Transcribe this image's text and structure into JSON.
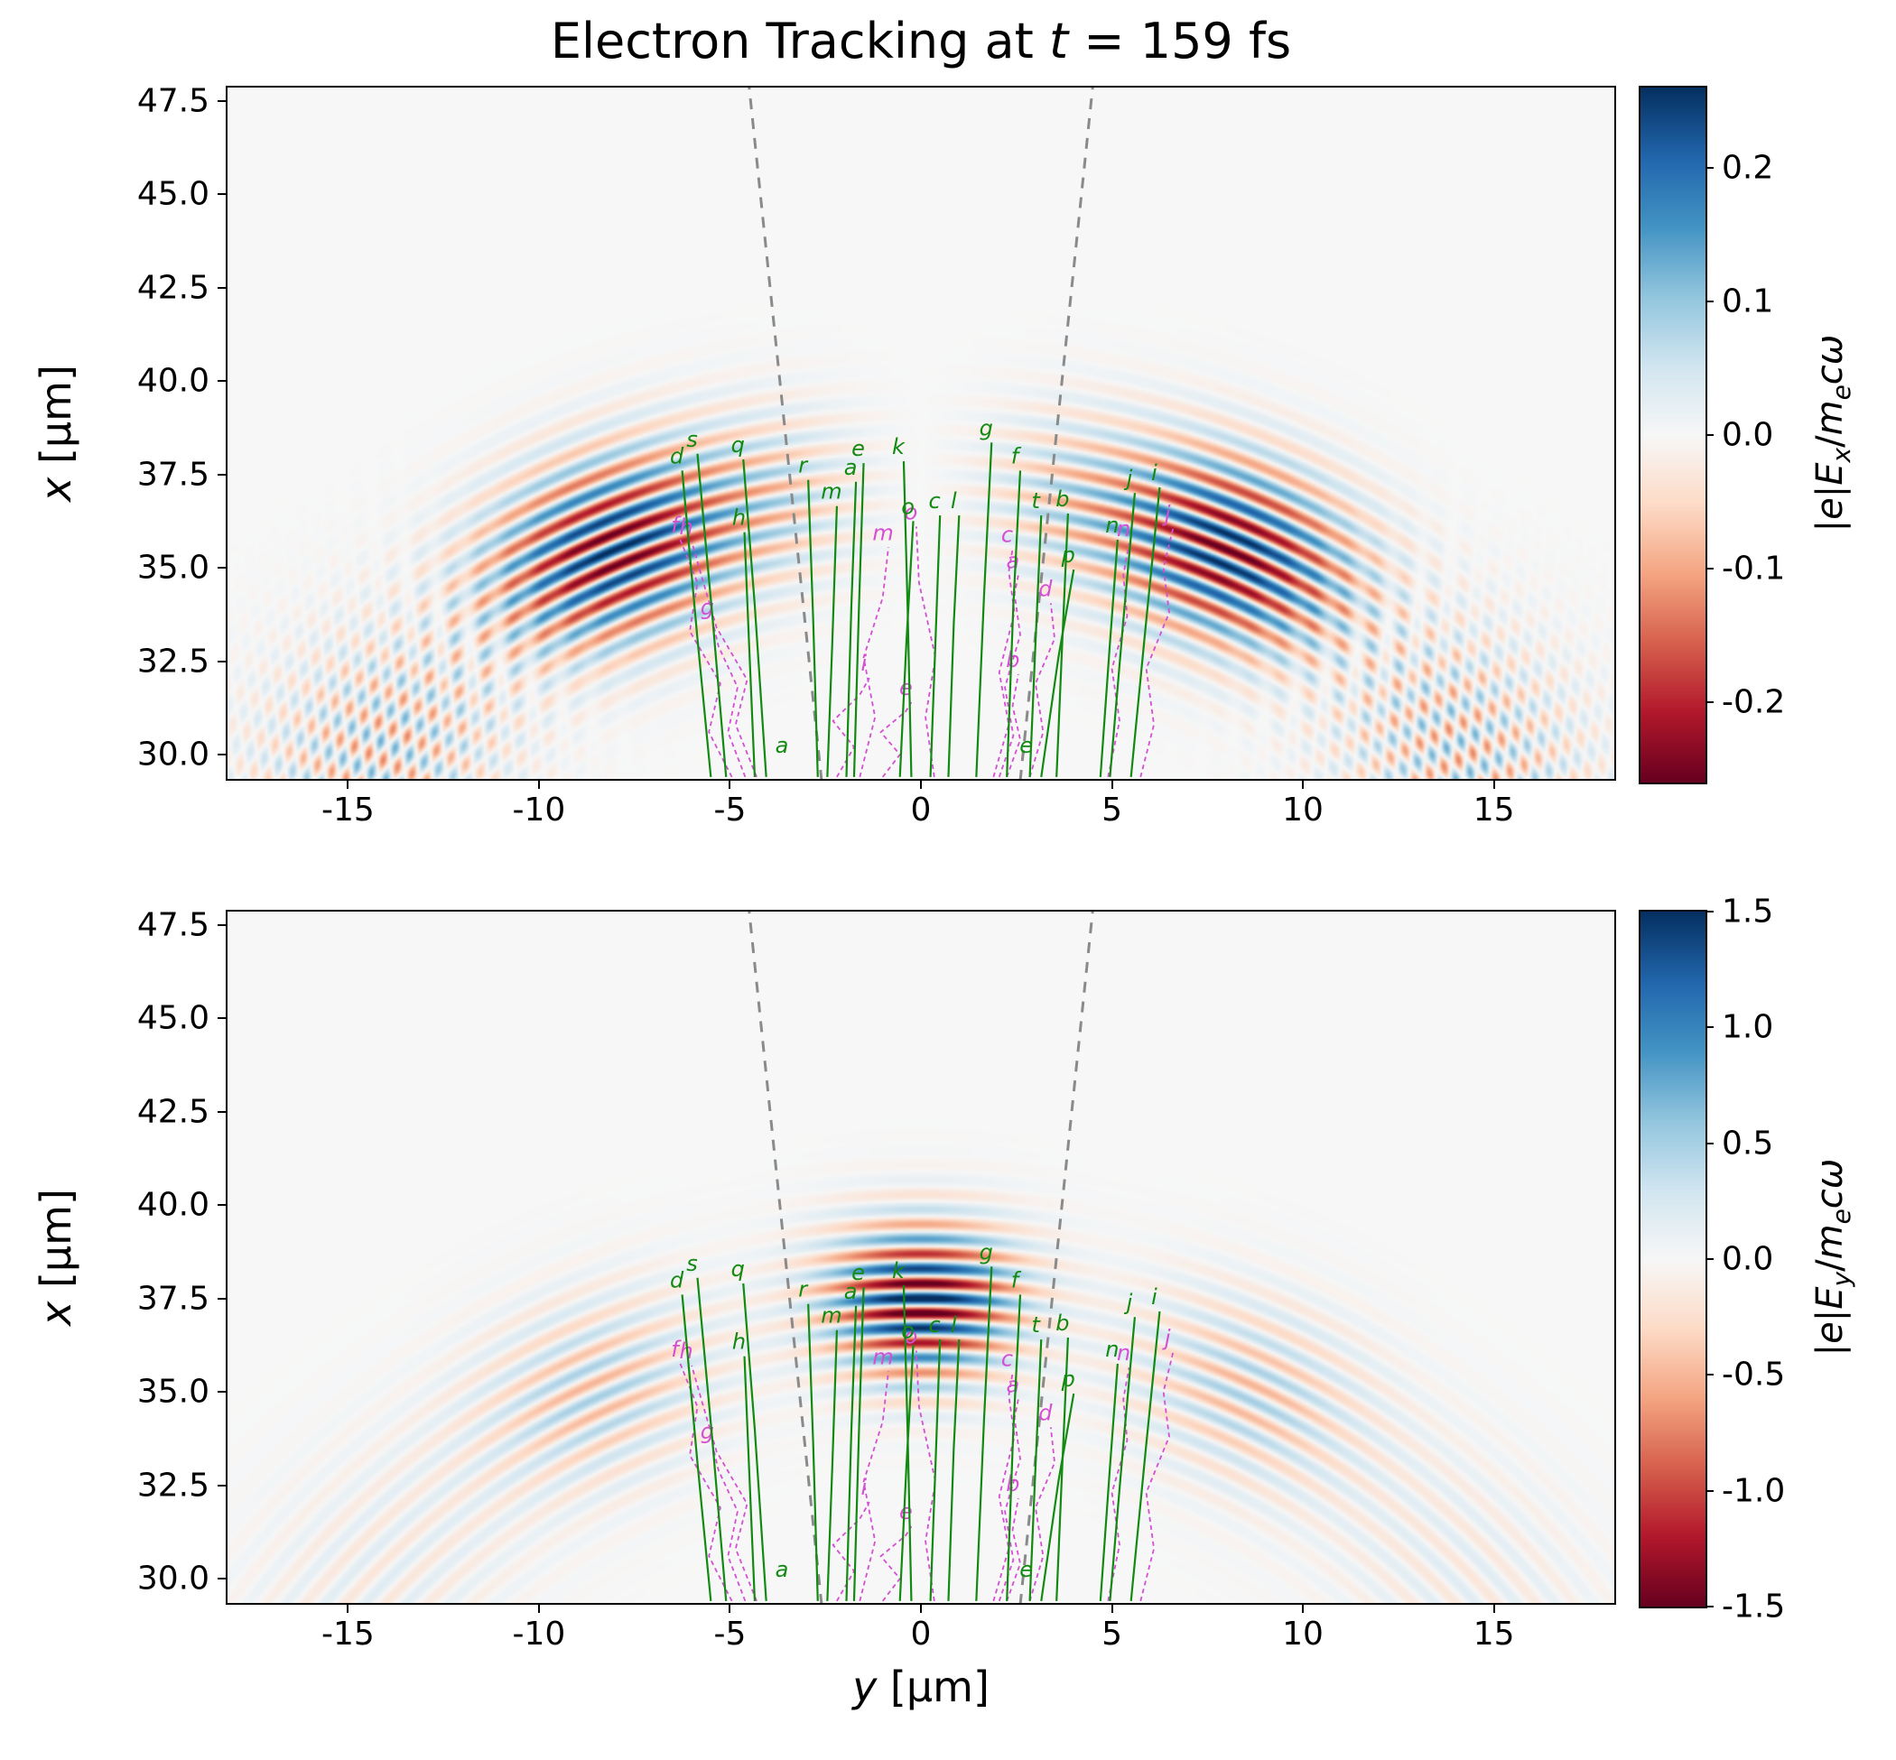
{
  "figure": {
    "title_math": "Electron Tracking at *t* = 159 fs",
    "xlabel_math": "*y* [μm]",
    "ylabel_math": "*x* [μm]"
  },
  "chart_data": {
    "type": "heatmap",
    "title": "Electron Tracking at t = 159 fs",
    "xlabel": "y [μm]",
    "ylabel": "x [μm]",
    "xlim": [
      -18.2,
      18.2
    ],
    "ylim": [
      29.3,
      47.9
    ],
    "grid": false,
    "xtick_values": [
      -15,
      -10,
      -5,
      0,
      5,
      10,
      15
    ],
    "xtick_labels": [
      "-15",
      "-10",
      "-5",
      "0",
      "5",
      "10",
      "15"
    ],
    "ytick_values": [
      47.5,
      45.0,
      42.5,
      40.0,
      37.5,
      35.0,
      32.5,
      30.0
    ],
    "ytick_labels": [
      "47.5",
      "45.0",
      "42.5",
      "40.0",
      "37.5",
      "35.0",
      "32.5",
      "30.0"
    ],
    "panels": [
      {
        "name": "Ex",
        "cbar_label": "|e|Ex/mecω",
        "cbar_label_math": "|*e*|*E*_{x}/*m*_{e}*cω*",
        "vmin": -0.26,
        "vmax": 0.26,
        "cbar_tick_values": [
          0.2,
          0.1,
          0.0,
          -0.1,
          -0.2
        ],
        "cbar_tick_labels": [
          "0.2",
          "0.1",
          "0.0",
          "-0.1",
          "-0.2"
        ]
      },
      {
        "name": "Ey",
        "cbar_label": "|e|Ey/mecω",
        "cbar_label_math": "|*e*|*E*_{y}/*m*_{e}*cω*",
        "vmin": -1.5,
        "vmax": 1.5,
        "cbar_tick_values": [
          1.5,
          1.0,
          0.5,
          0.0,
          -0.5,
          -1.0,
          -1.5
        ],
        "cbar_tick_labels": [
          "1.5",
          "1.0",
          "0.5",
          "0.0",
          "-0.5",
          "-1.0",
          "-1.5"
        ]
      }
    ],
    "colormap": {
      "name": "RdBu",
      "stops": [
        "#67001f",
        "#b2182b",
        "#d6604d",
        "#f4a582",
        "#fddbc7",
        "#f7f7f7",
        "#d1e5f0",
        "#92c5de",
        "#4393c4",
        "#2166ac",
        "#053061"
      ]
    },
    "field_model": {
      "wavelength_um": 0.8,
      "arc_center_x_um": 16.5,
      "phase_ref_um": 21.0,
      "ex": {
        "amp": 0.27,
        "lobe_theta": 0.4,
        "lobe_width": 0.17,
        "r_center": 20.6,
        "r_width": 2.4,
        "checker_amp": 0.13,
        "checker_theta": 0.8,
        "checker_width": 0.2,
        "checker_r": 19.6,
        "checker_rw": 3.0,
        "checker_transverse_um": 0.9,
        "inner_amp": 0.05,
        "inner_theta": 0.17,
        "inner_width": 0.1,
        "inner_r": 20.8,
        "inner_rw": 2.2
      },
      "ey": {
        "central_amp": 1.7,
        "central_width": 0.115,
        "central_r": 20.9,
        "central_rw": 2.0,
        "side_amp": 0.5,
        "side_theta": 0.43,
        "side_width": 0.16,
        "side_r": 20.4,
        "side_rw": 2.4,
        "outer_amp": 0.18,
        "outer_theta": 0.8,
        "outer_width": 0.22,
        "outer_r": 19.6,
        "outer_rw": 3.0
      }
    },
    "cone_lines": [
      {
        "from_yx": [
          -2.6,
          29.3
        ],
        "to_yx": [
          -4.5,
          47.9
        ]
      },
      {
        "from_yx": [
          2.6,
          29.3
        ],
        "to_yx": [
          4.5,
          47.9
        ]
      }
    ],
    "tracks": {
      "green_solid": [
        {
          "label": "s",
          "points_yx": [
            [
              -5.1,
              29.4
            ],
            [
              -5.45,
              33.6
            ],
            [
              -5.85,
              38.05
            ]
          ]
        },
        {
          "label": "d",
          "points_yx": [
            [
              -5.5,
              29.4
            ],
            [
              -5.85,
              33.1
            ],
            [
              -6.25,
              37.6
            ]
          ]
        },
        {
          "label": "q",
          "points_yx": [
            [
              -4.05,
              29.4
            ],
            [
              -4.35,
              34.0
            ],
            [
              -4.65,
              37.9
            ]
          ]
        },
        {
          "label": "h",
          "points_yx": [
            [
              -4.35,
              29.4
            ],
            [
              -4.5,
              33.0
            ],
            [
              -4.62,
              35.95
            ]
          ]
        },
        {
          "label": "r",
          "points_yx": [
            [
              -2.7,
              29.4
            ],
            [
              -2.82,
              33.6
            ],
            [
              -2.95,
              37.35
            ]
          ]
        },
        {
          "label": "e",
          "points_yx": [
            [
              -1.75,
              29.4
            ],
            [
              -1.62,
              34.0
            ],
            [
              -1.5,
              37.8
            ]
          ]
        },
        {
          "label": "a",
          "points_yx": [
            [
              -1.95,
              29.4
            ],
            [
              -1.82,
              34.0
            ],
            [
              -1.7,
              37.3
            ]
          ]
        },
        {
          "label": "k",
          "points_yx": [
            [
              -0.25,
              29.4
            ],
            [
              -0.35,
              34.0
            ],
            [
              -0.45,
              37.85
            ]
          ]
        },
        {
          "label": "g",
          "points_yx": [
            [
              1.45,
              29.4
            ],
            [
              1.65,
              34.2
            ],
            [
              1.85,
              38.35
            ]
          ]
        },
        {
          "label": "f",
          "points_yx": [
            [
              2.25,
              29.4
            ],
            [
              2.42,
              34.0
            ],
            [
              2.6,
              37.6
            ]
          ]
        },
        {
          "label": "t",
          "points_yx": [
            [
              2.85,
              29.4
            ],
            [
              3.0,
              33.0
            ],
            [
              3.15,
              36.4
            ]
          ]
        },
        {
          "label": "b",
          "points_yx": [
            [
              3.55,
              29.4
            ],
            [
              3.7,
              33.0
            ],
            [
              3.85,
              36.45
            ]
          ]
        },
        {
          "label": "i",
          "points_yx": [
            [
              5.5,
              29.4
            ],
            [
              5.9,
              33.6
            ],
            [
              6.25,
              37.15
            ]
          ]
        },
        {
          "label": "j",
          "points_yx": [
            [
              4.95,
              29.4
            ],
            [
              5.3,
              33.6
            ],
            [
              5.6,
              37.0
            ]
          ]
        },
        {
          "label": "m",
          "points_yx": [
            [
              -2.45,
              29.4
            ],
            [
              -2.32,
              33.0
            ],
            [
              -2.2,
              36.65
            ]
          ]
        },
        {
          "label": "n",
          "points_yx": [
            [
              4.7,
              29.4
            ],
            [
              4.95,
              33.0
            ],
            [
              5.15,
              35.75
            ]
          ]
        },
        {
          "label": "o",
          "points_yx": [
            [
              -0.55,
              29.4
            ],
            [
              -0.38,
              33.0
            ],
            [
              -0.2,
              36.25
            ]
          ]
        },
        {
          "label": "c",
          "points_yx": [
            [
              0.25,
              29.4
            ],
            [
              0.38,
              33.0
            ],
            [
              0.5,
              36.4
            ]
          ]
        },
        {
          "label": "l",
          "points_yx": [
            [
              0.72,
              29.4
            ],
            [
              0.86,
              33.5
            ],
            [
              1.0,
              36.4
            ]
          ]
        },
        {
          "label": "p",
          "points_yx": [
            [
              3.15,
              29.4
            ],
            [
              3.6,
              32.6
            ],
            [
              4.0,
              34.95
            ]
          ]
        }
      ],
      "magenta_dashed": [
        {
          "label": "f",
          "points_yx": [
            [
              -4.95,
              29.4
            ],
            [
              -5.55,
              30.6
            ],
            [
              -5.25,
              31.9
            ],
            [
              -6.05,
              33.3
            ],
            [
              -5.85,
              34.6
            ],
            [
              -6.3,
              35.75
            ]
          ]
        },
        {
          "label": "h",
          "points_yx": [
            [
              -4.3,
              29.4
            ],
            [
              -4.85,
              30.8
            ],
            [
              -4.55,
              32.0
            ],
            [
              -5.35,
              33.4
            ],
            [
              -5.75,
              34.8
            ],
            [
              -6.0,
              35.7
            ]
          ]
        },
        {
          "label": "g",
          "points_yx": [
            [
              -4.6,
              29.4
            ],
            [
              -5.05,
              30.6
            ],
            [
              -4.8,
              31.8
            ],
            [
              -5.3,
              32.9
            ],
            [
              -5.45,
              33.55
            ]
          ]
        },
        {
          "label": "i",
          "points_yx": [
            [
              -2.2,
              29.4
            ],
            [
              -1.75,
              30.2
            ],
            [
              -2.3,
              30.9
            ],
            [
              -1.6,
              31.6
            ],
            [
              -1.35,
              32.05
            ]
          ]
        },
        {
          "label": "e",
          "points_yx": [
            [
              -1.0,
              29.4
            ],
            [
              -0.55,
              30.0
            ],
            [
              -1.05,
              30.6
            ],
            [
              -0.4,
              31.15
            ],
            [
              -0.25,
              31.4
            ]
          ]
        },
        {
          "label": "m",
          "points_yx": [
            [
              -1.6,
              29.4
            ],
            [
              -1.2,
              31.0
            ],
            [
              -1.5,
              32.6
            ],
            [
              -1.0,
              34.2
            ],
            [
              -0.85,
              35.55
            ]
          ]
        },
        {
          "label": "o",
          "points_yx": [
            [
              0.35,
              29.4
            ],
            [
              0.12,
              31.0
            ],
            [
              0.38,
              32.6
            ],
            [
              -0.05,
              34.6
            ],
            [
              -0.12,
              36.1
            ]
          ]
        },
        {
          "label": "c",
          "points_yx": [
            [
              1.9,
              29.4
            ],
            [
              2.3,
              30.8
            ],
            [
              2.05,
              32.2
            ],
            [
              2.45,
              33.8
            ],
            [
              2.3,
              34.9
            ],
            [
              2.4,
              35.5
            ]
          ]
        },
        {
          "label": "a",
          "points_yx": [
            [
              2.05,
              29.4
            ],
            [
              2.42,
              30.5
            ],
            [
              2.2,
              31.8
            ],
            [
              2.6,
              33.2
            ],
            [
              2.45,
              34.3
            ],
            [
              2.55,
              34.8
            ]
          ]
        },
        {
          "label": "b",
          "points_yx": [
            [
              2.25,
              29.4
            ],
            [
              2.6,
              30.4
            ],
            [
              2.4,
              31.3
            ],
            [
              2.55,
              32.15
            ]
          ]
        },
        {
          "label": "d",
          "points_yx": [
            [
              2.85,
              29.4
            ],
            [
              3.2,
              30.6
            ],
            [
              3.0,
              31.9
            ],
            [
              3.5,
              33.1
            ],
            [
              3.4,
              34.05
            ]
          ]
        },
        {
          "label": "j",
          "points_yx": [
            [
              5.75,
              29.4
            ],
            [
              6.1,
              30.8
            ],
            [
              5.9,
              32.3
            ],
            [
              6.5,
              33.8
            ],
            [
              6.35,
              35.0
            ],
            [
              6.6,
              36.05
            ]
          ]
        },
        {
          "label": "n",
          "points_yx": [
            [
              4.9,
              29.4
            ],
            [
              5.2,
              30.9
            ],
            [
              5.0,
              32.3
            ],
            [
              5.4,
              33.7
            ],
            [
              5.3,
              34.8
            ],
            [
              5.45,
              35.65
            ]
          ]
        }
      ]
    },
    "floating_labels": [
      {
        "text": "a",
        "yx": [
          -3.5,
          29.85
        ],
        "color": "green"
      },
      {
        "text": "e",
        "yx": [
          2.9,
          29.85
        ],
        "color": "green"
      }
    ],
    "style": {
      "green": "#128a12",
      "magenta": "#d44fd4",
      "cone_gray": "#8a8a8a",
      "background": "#ffffff"
    }
  }
}
